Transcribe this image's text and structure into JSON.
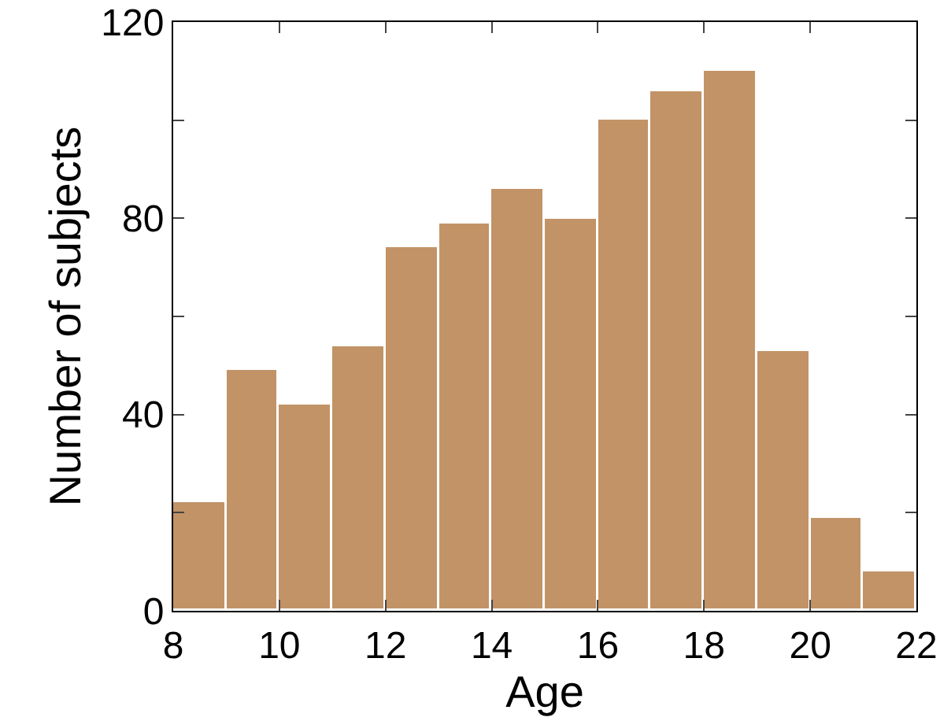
{
  "chart_data": {
    "type": "histogram",
    "xlabel": "Age",
    "ylabel": "Number of subjects",
    "bins": [
      8,
      9,
      10,
      11,
      12,
      13,
      14,
      15,
      16,
      17,
      18,
      19,
      20,
      21,
      22
    ],
    "values": [
      22,
      49,
      42,
      54,
      74,
      79,
      86,
      80,
      100,
      106,
      110,
      53,
      19,
      8
    ],
    "color": "#c29366",
    "xlim": [
      8,
      22
    ],
    "xticks": [
      8,
      10,
      12,
      14,
      16,
      18,
      20,
      22
    ],
    "ylim": [
      0,
      120
    ],
    "yticks": [
      0,
      {
        "value": 20,
        "label": null
      },
      40,
      {
        "value": 60,
        "label": null
      },
      80,
      {
        "value": 100,
        "label": null
      },
      120
    ],
    "grid": false
  }
}
